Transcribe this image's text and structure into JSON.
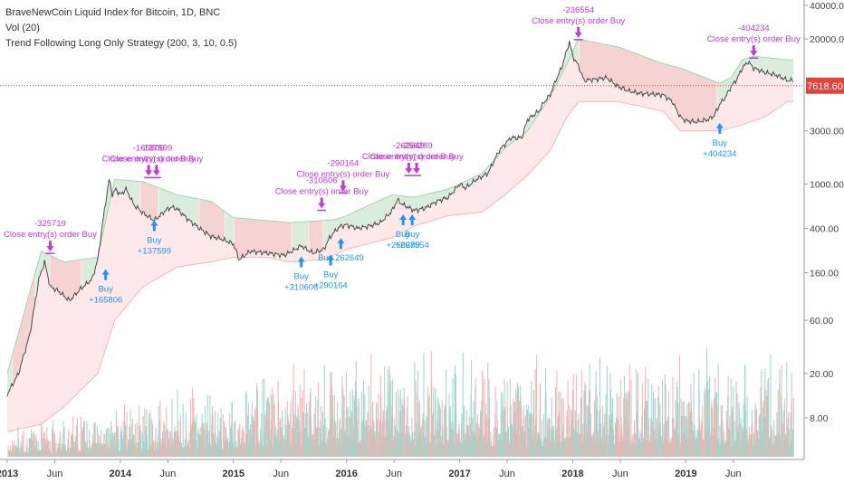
{
  "legend": {
    "title": "BraveNewCoin Liquid Index for Bitcoin, 1D, BNC",
    "vol": "Vol (20)",
    "strategy": "Trend Following Long Only Strategy (200, 3, 10, 0.5)"
  },
  "colors": {
    "price": "#4a4a4a",
    "long_band_fill": "#d6ecd9",
    "long_band_line": "#8fd19e",
    "short_band_fill": "#f5d0d0",
    "lower_fill": "#fde9e9",
    "lower_line": "#f7a8a8",
    "current_line": "#e0443c",
    "buy": "#2196f3",
    "close": "#c03ad8",
    "vol_up": "#9ed5cc",
    "vol_down": "#f4b1b0"
  },
  "chart_data": {
    "type": "line",
    "title": "BraveNewCoin Liquid Index for Bitcoin, 1D, BNC",
    "y_scale": "log",
    "ylim": [
      4,
      40000
    ],
    "xlim": [
      2013.0,
      2019.95
    ],
    "y_ticks": [
      "40000.00",
      "20000.00",
      "3000.00",
      "1000.00",
      "400.00",
      "160.00",
      "60.00",
      "20.00",
      "8.00"
    ],
    "current_price": "7618.60",
    "x_ticks": [
      {
        "x": 2013.0,
        "label": "2013",
        "bold": true
      },
      {
        "x": 2013.42,
        "label": "Jun",
        "bold": false
      },
      {
        "x": 2014.0,
        "label": "2014",
        "bold": true
      },
      {
        "x": 2014.42,
        "label": "Jun",
        "bold": false
      },
      {
        "x": 2015.0,
        "label": "2015",
        "bold": true
      },
      {
        "x": 2015.42,
        "label": "Jun",
        "bold": false
      },
      {
        "x": 2016.0,
        "label": "2016",
        "bold": true
      },
      {
        "x": 2016.42,
        "label": "Jun",
        "bold": false
      },
      {
        "x": 2017.0,
        "label": "2017",
        "bold": true
      },
      {
        "x": 2017.42,
        "label": "Jun",
        "bold": false
      },
      {
        "x": 2018.0,
        "label": "2018",
        "bold": true
      },
      {
        "x": 2018.42,
        "label": "Jun",
        "bold": false
      },
      {
        "x": 2019.0,
        "label": "2019",
        "bold": true
      },
      {
        "x": 2019.42,
        "label": "Jun",
        "bold": false
      }
    ],
    "series": [
      {
        "key": "price",
        "x": [
          2013.0,
          2013.1,
          2013.2,
          2013.28,
          2013.33,
          2013.38,
          2013.45,
          2013.55,
          2013.65,
          2013.75,
          2013.8,
          2013.85,
          2013.9,
          2013.93,
          2013.96,
          2014.0,
          2014.05,
          2014.12,
          2014.2,
          2014.3,
          2014.4,
          2014.45,
          2014.5,
          2014.6,
          2014.7,
          2014.8,
          2014.9,
          2015.0,
          2015.05,
          2015.15,
          2015.3,
          2015.45,
          2015.55,
          2015.6,
          2015.7,
          2015.8,
          2015.85,
          2015.9,
          2015.95,
          2016.0,
          2016.1,
          2016.2,
          2016.3,
          2016.4,
          2016.45,
          2016.5,
          2016.6,
          2016.7,
          2016.8,
          2016.9,
          2017.0,
          2017.05,
          2017.15,
          2017.25,
          2017.35,
          2017.45,
          2017.55,
          2017.6,
          2017.7,
          2017.75,
          2017.8,
          2017.85,
          2017.9,
          2017.95,
          2017.97,
          2018.0,
          2018.05,
          2018.1,
          2018.2,
          2018.3,
          2018.4,
          2018.5,
          2018.6,
          2018.7,
          2018.8,
          2018.88,
          2018.95,
          2019.0,
          2019.1,
          2019.2,
          2019.25,
          2019.3,
          2019.35,
          2019.4,
          2019.45,
          2019.5,
          2019.55,
          2019.6,
          2019.7,
          2019.8,
          2019.9
        ],
        "values": [
          13,
          20,
          45,
          140,
          200,
          120,
          110,
          90,
          115,
          140,
          210,
          500,
          1100,
          800,
          900,
          800,
          900,
          650,
          550,
          470,
          580,
          620,
          600,
          480,
          400,
          340,
          320,
          290,
          210,
          250,
          240,
          230,
          260,
          280,
          240,
          260,
          330,
          380,
          420,
          430,
          400,
          420,
          450,
          570,
          720,
          650,
          580,
          610,
          700,
          760,
          1000,
          920,
          1100,
          1250,
          2000,
          2600,
          2600,
          3800,
          4500,
          5500,
          6300,
          8500,
          11000,
          16000,
          19000,
          14000,
          11500,
          8500,
          8700,
          9000,
          7500,
          6800,
          6500,
          6400,
          6300,
          5500,
          4000,
          3700,
          3600,
          3800,
          4100,
          5200,
          6000,
          7500,
          8700,
          11000,
          12500,
          11000,
          10000,
          9500,
          8500
        ]
      },
      {
        "key": "upper",
        "x": [
          2013.0,
          2013.3,
          2013.5,
          2013.8,
          2013.95,
          2014.2,
          2014.5,
          2014.8,
          2015.0,
          2015.5,
          2015.9,
          2016.0,
          2016.4,
          2016.6,
          2016.9,
          2017.2,
          2017.4,
          2017.6,
          2017.8,
          2017.95,
          2018.05,
          2018.4,
          2018.8,
          2018.95,
          2019.3,
          2019.4,
          2019.5,
          2019.6,
          2019.9
        ],
        "values": [
          20,
          250,
          200,
          220,
          1100,
          1050,
          800,
          700,
          500,
          450,
          480,
          520,
          800,
          760,
          900,
          1250,
          2100,
          3000,
          6000,
          12000,
          20000,
          17000,
          12000,
          11000,
          8000,
          9000,
          13000,
          14000,
          13000
        ]
      },
      {
        "key": "lower",
        "x": [
          2013.0,
          2013.3,
          2013.5,
          2013.8,
          2013.95,
          2014.2,
          2014.5,
          2014.8,
          2015.0,
          2015.3,
          2015.5,
          2015.8,
          2016.0,
          2016.4,
          2016.6,
          2016.9,
          2017.2,
          2017.4,
          2017.6,
          2017.8,
          2017.95,
          2018.05,
          2018.4,
          2018.8,
          2018.95,
          2019.3,
          2019.5,
          2019.7,
          2019.9
        ],
        "values": [
          6,
          7,
          10,
          20,
          60,
          120,
          180,
          200,
          220,
          220,
          200,
          210,
          260,
          330,
          420,
          520,
          560,
          800,
          1200,
          2000,
          4000,
          5500,
          5500,
          4500,
          3000,
          3000,
          3400,
          4000,
          5500
        ]
      }
    ],
    "volume": {
      "note": "daily volume bars (up=teal, down=red), heights relative"
    },
    "buy_markers": [
      {
        "x": 2013.87,
        "price": 200,
        "labels": [
          "Buy",
          "+165806"
        ]
      },
      {
        "x": 2014.3,
        "price": 550,
        "labels": [
          "Buy",
          "+137599"
        ]
      },
      {
        "x": 2015.6,
        "price": 260,
        "labels": [
          "Buy",
          "+310606"
        ]
      },
      {
        "x": 2015.86,
        "price": 270,
        "labels": [
          "Buy",
          "+290164"
        ]
      },
      {
        "x": 2015.95,
        "price": 380,
        "labels": [
          "Buy 262649"
        ]
      },
      {
        "x": 2016.5,
        "price": 620,
        "labels": [
          "Buy",
          "+256289"
        ]
      },
      {
        "x": 2016.58,
        "price": 620,
        "labels": [
          "Buy",
          "+267554"
        ]
      },
      {
        "x": 2019.3,
        "price": 4100,
        "labels": [
          "Buy",
          "+404234"
        ]
      }
    ],
    "close_markers": [
      {
        "x": 2013.38,
        "price": 230,
        "labels": [
          "-325719",
          "Close entry(s) order Buy"
        ]
      },
      {
        "x": 2014.25,
        "price": 1100,
        "labels": [
          "-165806",
          "Close entry(s) order Buy"
        ]
      },
      {
        "x": 2014.32,
        "price": 1100,
        "labels": [
          "-137599",
          "Close entry(s) order Buy"
        ]
      },
      {
        "x": 2015.78,
        "price": 560,
        "labels": [
          "-310606",
          "Close entry(s) order Buy"
        ]
      },
      {
        "x": 2015.97,
        "price": 800,
        "labels": [
          "-290164",
          "Close entry(s) order Buy"
        ]
      },
      {
        "x": 2016.55,
        "price": 1150,
        "labels": [
          "-262649",
          "Close entry(s) order Buy"
        ]
      },
      {
        "x": 2016.62,
        "price": 1150,
        "labels": [
          "-256289",
          "Close entry(s) order Buy"
        ]
      },
      {
        "x": 2018.05,
        "price": 19000,
        "labels": [
          "-236554",
          "Close entry(s) order Buy"
        ]
      },
      {
        "x": 2019.6,
        "price": 13000,
        "labels": [
          "-404234",
          "Close entry(s) order Buy"
        ]
      }
    ]
  }
}
